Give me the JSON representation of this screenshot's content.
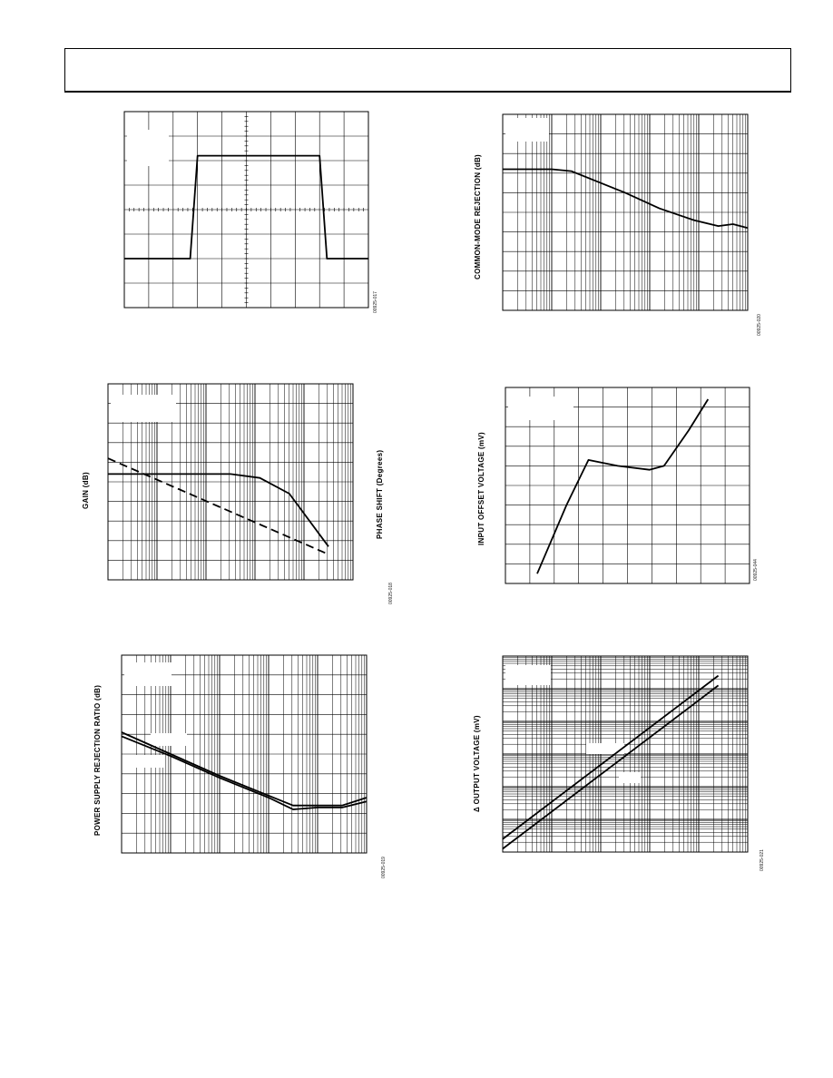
{
  "header": {},
  "figures": [
    {
      "id": "fig-pulse",
      "figure_code": "00925-017"
    },
    {
      "id": "fig-cmrr",
      "figure_code": "00925-020",
      "ylabel": "COMMON-MODE REJECTION (dB)"
    },
    {
      "id": "fig-gain-phase",
      "figure_code": "00925-018",
      "ylabel": "GAIN (dB)",
      "ylabel_right": "PHASE SHIFT  (Degrees)"
    },
    {
      "id": "fig-offset",
      "figure_code": "00925-044",
      "ylabel": "INPUT OFFSET VOLTAGE (mV)"
    },
    {
      "id": "fig-psrr",
      "figure_code": "00925-019",
      "ylabel": "POWER SUPPLY REJECTION RATIO (dB)"
    },
    {
      "id": "fig-delta-out",
      "figure_code": "00925-021",
      "ylabel": "Δ OUTPUT VOLTAGE (mV)"
    }
  ],
  "chart_data": [
    {
      "id": "fig-pulse",
      "type": "line",
      "scale": "linear",
      "grid": {
        "vdiv": 10,
        "hdiv": 8
      },
      "x_range": [
        0,
        10
      ],
      "y_range": [
        0,
        8
      ],
      "series": [
        {
          "values": [
            [
              0,
              2
            ],
            [
              2.7,
              2
            ],
            [
              3.0,
              6.2
            ],
            [
              8.0,
              6.2
            ],
            [
              8.3,
              2
            ],
            [
              10,
              2
            ]
          ]
        }
      ]
    },
    {
      "id": "fig-cmrr",
      "type": "line",
      "scale": "logx",
      "x_decades": 5,
      "y_range": [
        0,
        10
      ],
      "ylabel": "COMMON-MODE REJECTION (dB)",
      "series": [
        {
          "values": [
            [
              0,
              7.2
            ],
            [
              1.0,
              7.2
            ],
            [
              1.4,
              7.1
            ],
            [
              1.9,
              6.6
            ],
            [
              2.5,
              6.0
            ],
            [
              3.2,
              5.2
            ],
            [
              3.9,
              4.6
            ],
            [
              4.4,
              4.3
            ],
            [
              4.7,
              4.4
            ],
            [
              5,
              4.2
            ]
          ]
        }
      ]
    },
    {
      "id": "fig-gain-phase",
      "type": "line",
      "scale": "logx",
      "x_decades": 5,
      "y_range": [
        0,
        10
      ],
      "ylabel": "GAIN (dB)",
      "ylabel_right": "PHASE SHIFT  (Degrees)",
      "series": [
        {
          "values": [
            [
              0,
              5.4
            ],
            [
              2.5,
              5.4
            ],
            [
              3.1,
              5.2
            ],
            [
              3.7,
              4.4
            ],
            [
              4.5,
              1.7
            ]
          ]
        },
        {
          "values": [
            [
              0,
              6.2
            ],
            [
              4.5,
              1.3
            ]
          ],
          "dashed": true
        }
      ]
    },
    {
      "id": "fig-offset",
      "type": "line",
      "scale": "linear",
      "grid": {
        "vdiv": 10,
        "hdiv": 10
      },
      "x_range": [
        0,
        10
      ],
      "y_range": [
        0,
        10
      ],
      "ylabel": "INPUT OFFSET VOLTAGE (mV)",
      "series": [
        {
          "values": [
            [
              1.3,
              0.5
            ],
            [
              2.5,
              4.0
            ],
            [
              3.4,
              6.3
            ],
            [
              4.6,
              6.0
            ],
            [
              5.9,
              5.8
            ],
            [
              6.5,
              6.0
            ],
            [
              7.5,
              7.8
            ],
            [
              8.3,
              9.4
            ]
          ]
        }
      ]
    },
    {
      "id": "fig-psrr",
      "type": "line",
      "scale": "logx",
      "x_decades": 5,
      "y_range": [
        0,
        10
      ],
      "ylabel": "POWER SUPPLY REJECTION RATIO (dB)",
      "series": [
        {
          "values": [
            [
              0,
              5.9
            ],
            [
              1,
              4.9
            ],
            [
              2,
              3.8
            ],
            [
              3,
              2.8
            ],
            [
              3.5,
              2.2
            ],
            [
              4,
              2.3
            ],
            [
              4.5,
              2.3
            ],
            [
              5,
              2.6
            ]
          ]
        },
        {
          "values": [
            [
              0,
              6.1
            ],
            [
              1,
              5.0
            ],
            [
              2,
              3.9
            ],
            [
              3,
              2.9
            ],
            [
              3.5,
              2.4
            ],
            [
              4,
              2.4
            ],
            [
              4.5,
              2.4
            ],
            [
              5,
              2.8
            ]
          ]
        }
      ]
    },
    {
      "id": "fig-delta-out",
      "type": "line",
      "scale": "loglog",
      "x_decades": 5,
      "y_decades": 6,
      "ylabel": "Δ OUTPUT VOLTAGE (mV)",
      "series": [
        {
          "values": [
            [
              0,
              0.4
            ],
            [
              4.4,
              5.4
            ]
          ]
        },
        {
          "values": [
            [
              0,
              0.1
            ],
            [
              4.4,
              5.1
            ]
          ]
        }
      ]
    }
  ]
}
